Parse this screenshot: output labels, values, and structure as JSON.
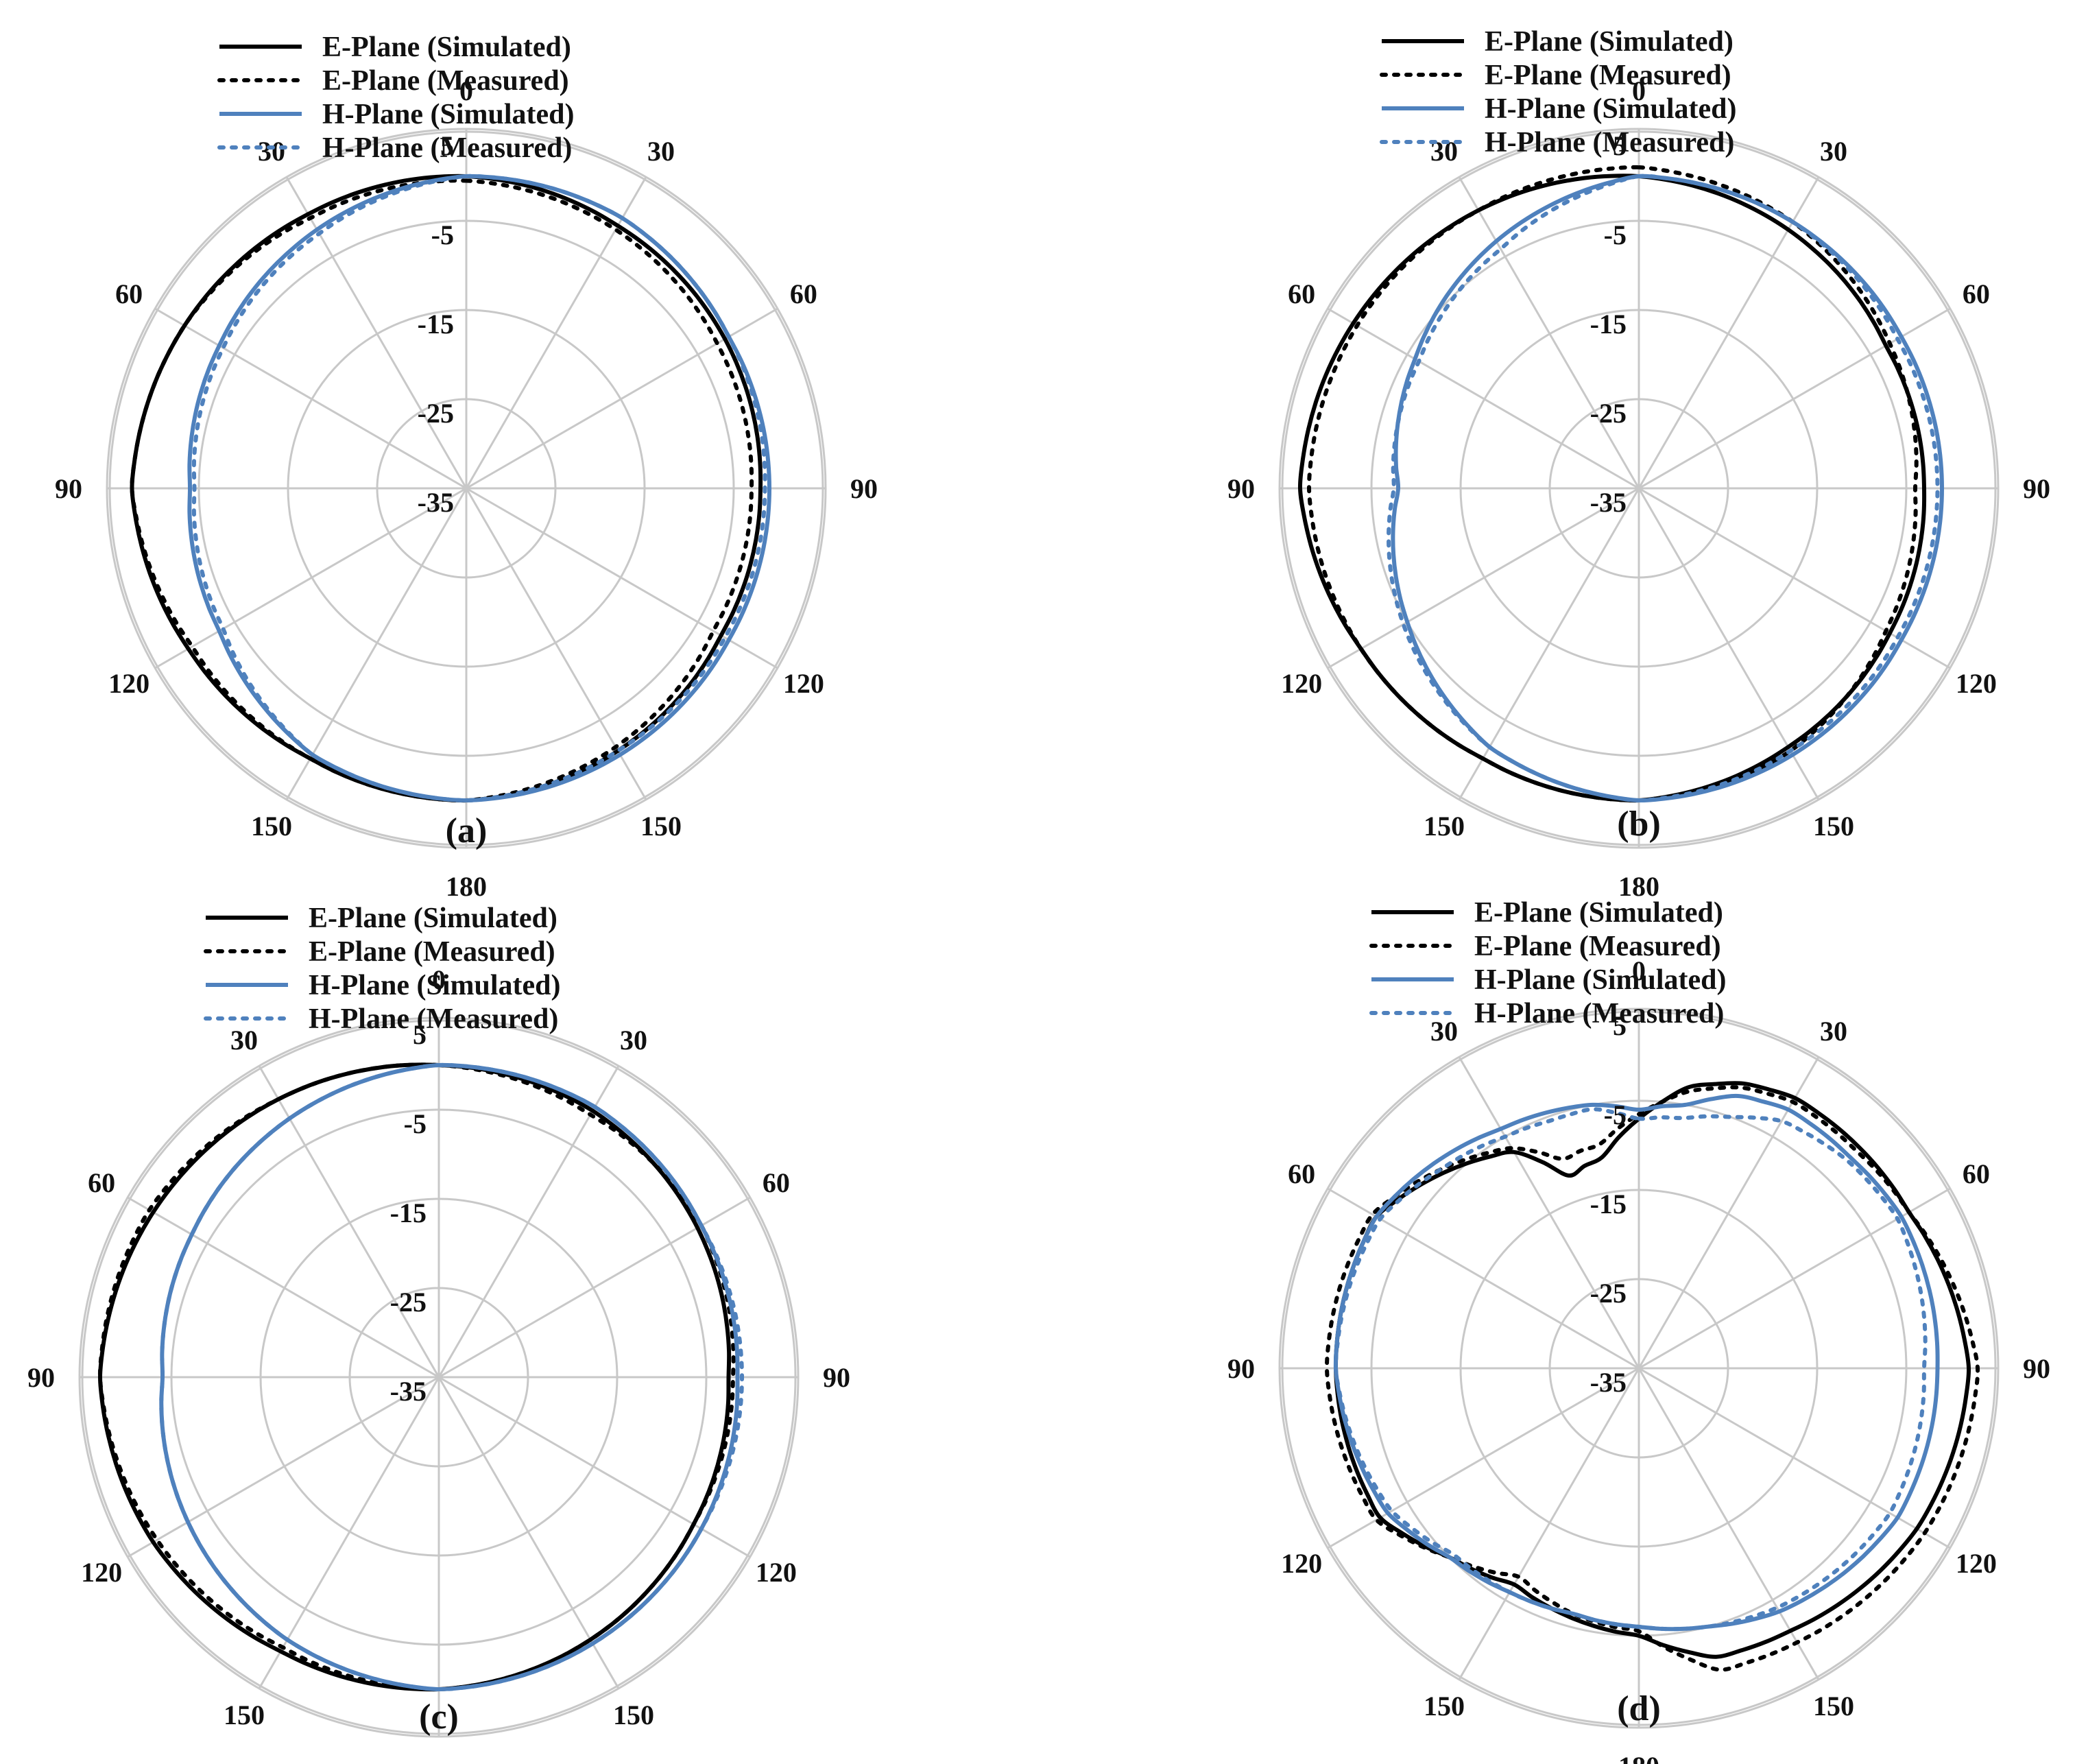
{
  "colors": {
    "e_plane": "#000000",
    "h_plane": "#4f81bd",
    "grid": "#c8c8c8",
    "text": "#111111"
  },
  "legend_labels": [
    "E-Plane (Simulated)",
    "E-Plane (Measured)",
    "H-Plane (Simulated)",
    "H-Plane (Measured)"
  ],
  "chart_data": [
    {
      "type": "polar-line",
      "panel_label": "(a)",
      "radial_axis": {
        "ticks": [
          5,
          -5,
          -15,
          -25,
          -35
        ],
        "range": [
          -35,
          5
        ],
        "unit": ""
      },
      "angle_labels": [
        {
          "angle": 0,
          "text": "0"
        },
        {
          "angle": 30,
          "text": "30"
        },
        {
          "angle": 60,
          "text": "60"
        },
        {
          "angle": 90,
          "text": "90"
        },
        {
          "angle": 120,
          "text": "120"
        },
        {
          "angle": 150,
          "text": "150"
        },
        {
          "angle": 180,
          "text": "180"
        },
        {
          "angle": 210,
          "text": "150"
        },
        {
          "angle": 240,
          "text": "120"
        },
        {
          "angle": 270,
          "text": "90"
        },
        {
          "angle": 300,
          "text": "60"
        },
        {
          "angle": 330,
          "text": "30"
        }
      ],
      "legend_position": "top",
      "grid": true,
      "angles_deg": [
        0,
        30,
        60,
        90,
        120,
        150,
        180,
        210,
        240,
        270,
        300,
        330
      ],
      "series": [
        {
          "name": "E-Plane (Simulated)",
          "style": "solid",
          "color": "#000000",
          "values": [
            0,
            -1,
            -1.5,
            -2,
            -2,
            -1,
            0,
            0,
            1,
            2.5,
            1.5,
            0.5
          ]
        },
        {
          "name": "E-Plane (Measured)",
          "style": "dotted",
          "color": "#000000",
          "values": [
            -0.5,
            -1.5,
            -2.5,
            -3,
            -3,
            -1.5,
            0,
            0,
            0.5,
            2.5,
            1.5,
            0
          ]
        },
        {
          "name": "H-Plane (Simulated)",
          "style": "solid",
          "color": "#4f81bd",
          "values": [
            0,
            0,
            -1,
            -1,
            -1,
            -0.5,
            0,
            -0.5,
            -3,
            -4,
            -3,
            -1.5
          ]
        },
        {
          "name": "H-Plane (Measured)",
          "style": "dotted",
          "color": "#4f81bd",
          "values": [
            0,
            0,
            -1,
            -1.5,
            -1.5,
            -1,
            0,
            -0.5,
            -3.5,
            -4.5,
            -3.5,
            -2
          ]
        }
      ]
    },
    {
      "type": "polar-line",
      "panel_label": "(b)",
      "radial_axis": {
        "ticks": [
          5,
          -5,
          -15,
          -25,
          -35
        ],
        "range": [
          -35,
          5
        ],
        "unit": ""
      },
      "angle_labels": [
        {
          "angle": 0,
          "text": "0"
        },
        {
          "angle": 30,
          "text": "30"
        },
        {
          "angle": 60,
          "text": "60"
        },
        {
          "angle": 90,
          "text": "90"
        },
        {
          "angle": 120,
          "text": "120"
        },
        {
          "angle": 150,
          "text": "150"
        },
        {
          "angle": 180,
          "text": "180"
        },
        {
          "angle": 210,
          "text": "150"
        },
        {
          "angle": 240,
          "text": "120"
        },
        {
          "angle": 270,
          "text": "90"
        },
        {
          "angle": 300,
          "text": "60"
        },
        {
          "angle": 330,
          "text": "30"
        }
      ],
      "legend_position": "top",
      "grid": true,
      "angles_deg": [
        0,
        30,
        60,
        90,
        120,
        150,
        180,
        210,
        240,
        270,
        300,
        330
      ],
      "series": [
        {
          "name": "E-Plane (Simulated)",
          "style": "solid",
          "color": "#000000",
          "values": [
            0,
            -1.5,
            -3,
            -3,
            -2.5,
            -1.5,
            0,
            0,
            1,
            3,
            2,
            1
          ]
        },
        {
          "name": "E-Plane (Measured)",
          "style": "dotted",
          "color": "#000000",
          "values": [
            1,
            -0.5,
            -2.5,
            -4,
            -3,
            -1,
            0,
            0,
            1,
            2,
            1.5,
            1
          ]
        },
        {
          "name": "H-Plane (Simulated)",
          "style": "solid",
          "color": "#4f81bd",
          "values": [
            0,
            -0.5,
            -1,
            -1,
            -1,
            -0.5,
            0,
            -1.5,
            -5,
            -8,
            -6,
            -3
          ]
        },
        {
          "name": "H-Plane (Measured)",
          "style": "dotted",
          "color": "#4f81bd",
          "values": [
            0,
            -0.5,
            -1.5,
            -1.5,
            -1.5,
            -1,
            0,
            -1.5,
            -4.5,
            -7.5,
            -6.5,
            -4
          ]
        }
      ]
    },
    {
      "type": "polar-line",
      "panel_label": "(c)",
      "radial_axis": {
        "ticks": [
          5,
          -5,
          -15,
          -25,
          -35
        ],
        "range": [
          -35,
          5
        ],
        "unit": ""
      },
      "angle_labels": [
        {
          "angle": 0,
          "text": "0"
        },
        {
          "angle": 30,
          "text": "30"
        },
        {
          "angle": 60,
          "text": "60"
        },
        {
          "angle": 90,
          "text": "90"
        },
        {
          "angle": 120,
          "text": "120"
        },
        {
          "angle": 150,
          "text": "150"
        },
        {
          "angle": 180,
          "text": "180"
        },
        {
          "angle": 210,
          "text": "150"
        },
        {
          "angle": 240,
          "text": "120"
        },
        {
          "angle": 270,
          "text": "90"
        },
        {
          "angle": 300,
          "text": "60"
        },
        {
          "angle": 330,
          "text": "30"
        }
      ],
      "legend_position": "top",
      "grid": true,
      "angles_deg": [
        0,
        30,
        60,
        90,
        120,
        150,
        180,
        210,
        240,
        270,
        300,
        330
      ],
      "series": [
        {
          "name": "E-Plane (Simulated)",
          "style": "solid",
          "color": "#000000",
          "values": [
            0,
            -0.5,
            -1.5,
            -2.5,
            -2,
            -1,
            0,
            0.5,
            2,
            3,
            2,
            1
          ]
        },
        {
          "name": "E-Plane (Measured)",
          "style": "dotted",
          "color": "#000000",
          "values": [
            0,
            -1,
            -1,
            -2,
            -2,
            -1,
            0,
            0,
            1.5,
            3,
            2.5,
            1
          ]
        },
        {
          "name": "H-Plane (Simulated)",
          "style": "solid",
          "color": "#4f81bd",
          "values": [
            0,
            0,
            -1,
            -1.5,
            -1,
            -0.5,
            0,
            -1,
            -2.5,
            -4,
            -3,
            -1.5
          ]
        },
        {
          "name": "H-Plane (Measured)",
          "style": "dotted",
          "color": "#4f81bd",
          "values": [
            0,
            0,
            -1,
            -1,
            -1,
            -0.5,
            0,
            -1,
            -2.5,
            -4,
            -3,
            -1.5
          ]
        }
      ]
    },
    {
      "type": "polar-line",
      "panel_label": "(d)",
      "radial_axis": {
        "ticks": [
          5,
          -5,
          -15,
          -25,
          -35
        ],
        "range": [
          -35,
          5
        ],
        "unit": ""
      },
      "angle_labels": [
        {
          "angle": 0,
          "text": "0"
        },
        {
          "angle": 30,
          "text": "30"
        },
        {
          "angle": 60,
          "text": "60"
        },
        {
          "angle": 90,
          "text": "90"
        },
        {
          "angle": 120,
          "text": "120"
        },
        {
          "angle": 150,
          "text": "150"
        },
        {
          "angle": 180,
          "text": "180"
        },
        {
          "angle": 210,
          "text": "150"
        },
        {
          "angle": 240,
          "text": "120"
        },
        {
          "angle": 270,
          "text": "90"
        },
        {
          "angle": 300,
          "text": "60"
        },
        {
          "angle": 330,
          "text": "30"
        }
      ],
      "legend_position": "top",
      "grid": true,
      "angles_deg": [
        0,
        10,
        20,
        30,
        45,
        60,
        90,
        120,
        150,
        165,
        180,
        195,
        210,
        225,
        240,
        270,
        300,
        315,
        330,
        340,
        350
      ],
      "series": [
        {
          "name": "E-Plane (Simulated)",
          "style": "solid",
          "color": "#000000",
          "values": [
            -7,
            -3,
            -1,
            0,
            0,
            0,
            2,
            1,
            -1,
            -1.5,
            -5,
            -6,
            -7,
            -5,
            -1.5,
            -1,
            -1,
            -4,
            -7,
            -12,
            -11
          ]
        },
        {
          "name": "E-Plane (Measured)",
          "style": "dotted",
          "color": "#000000",
          "values": [
            -6.5,
            -3.5,
            -1.5,
            -0.5,
            -0.5,
            0,
            3,
            2,
            0.5,
            0,
            -5.5,
            -6.5,
            -8,
            -5,
            -1,
            0,
            -0.5,
            -3.5,
            -6.5,
            -10,
            -9.5
          ]
        },
        {
          "name": "H-Plane (Simulated)",
          "style": "solid",
          "color": "#4f81bd",
          "values": [
            -6,
            -5,
            -2.5,
            -1.5,
            -1.5,
            -1,
            -1.5,
            -1.5,
            -3.5,
            -5,
            -6,
            -6.5,
            -6,
            -5,
            -2.5,
            -1,
            -1,
            -2.5,
            -4,
            -4.5,
            -5
          ]
        },
        {
          "name": "H-Plane (Measured)",
          "style": "dotted",
          "color": "#4f81bd",
          "values": [
            -7,
            -6.5,
            -5,
            -3,
            -2,
            -1.5,
            -3,
            -2.5,
            -4,
            -5,
            -6,
            -6.5,
            -6,
            -5.5,
            -3,
            -1,
            -1.5,
            -3.5,
            -5,
            -5.5,
            -5.5
          ]
        }
      ]
    }
  ]
}
